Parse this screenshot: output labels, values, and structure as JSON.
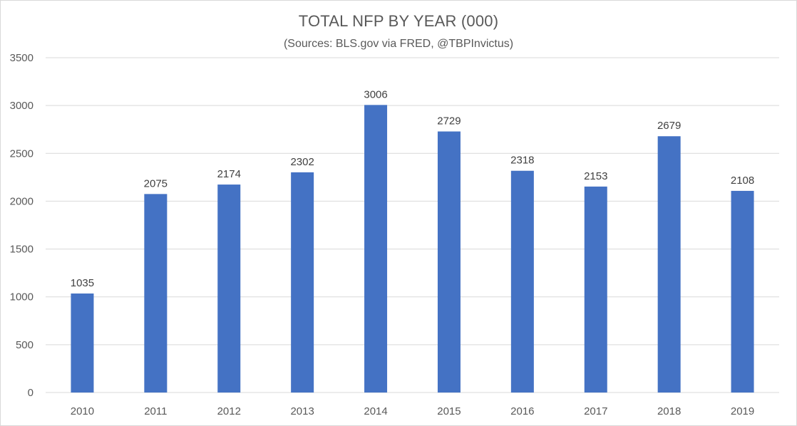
{
  "chart": {
    "title": "TOTAL NFP BY YEAR (000)",
    "subtitle": "(Sources: BLS.gov via FRED, @TBPInvictus)"
  },
  "colors": {
    "bar": "#4472C4",
    "gridline": "#d9d9d9",
    "axis_text": "#595959",
    "data_label_text": "#404040"
  },
  "chart_data": {
    "type": "bar",
    "title": "TOTAL NFP BY YEAR (000)",
    "subtitle": "(Sources: BLS.gov via FRED, @TBPInvictus)",
    "categories": [
      "2010",
      "2011",
      "2012",
      "2013",
      "2014",
      "2015",
      "2016",
      "2017",
      "2018",
      "2019"
    ],
    "values": [
      1035,
      2075,
      2174,
      2302,
      3006,
      2729,
      2318,
      2153,
      2679,
      2108
    ],
    "data_labels": [
      "1035",
      "2075",
      "2174",
      "2302",
      "3006",
      "2729",
      "2318",
      "2153",
      "2679",
      "2108"
    ],
    "xlabel": "",
    "ylabel": "",
    "ylim": [
      0,
      3500
    ],
    "yticks": [
      0,
      500,
      1000,
      1500,
      2000,
      2500,
      3000,
      3500
    ],
    "grid": true,
    "legend": "none"
  }
}
